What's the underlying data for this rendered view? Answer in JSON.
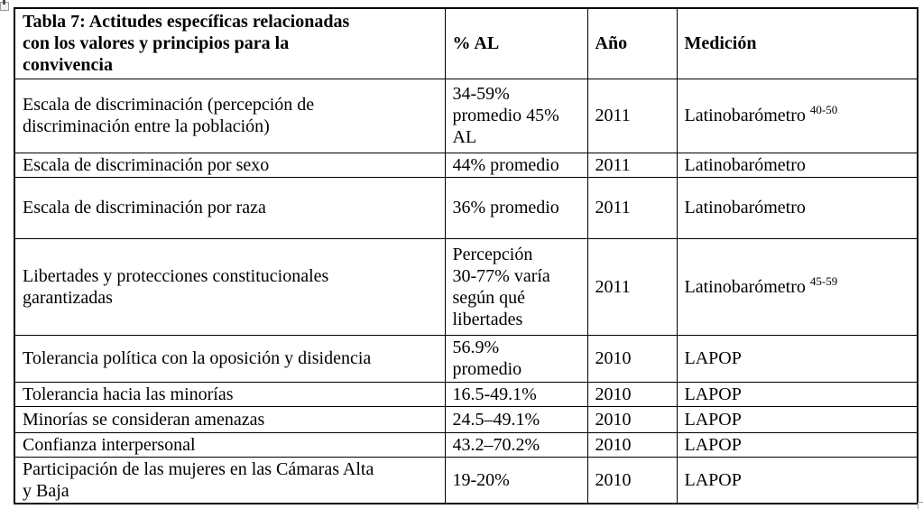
{
  "page": {
    "background": "#ffffff",
    "text_color": "#000000",
    "border_color": "#000000"
  },
  "icons": {
    "move_handle": "table-move-handle-icon",
    "resize_handle": "table-resize-handle-icon"
  },
  "table": {
    "header": {
      "title": "Tabla 7: Actitudes específicas relacionadas\ncon los valores y principios para la\nconvivencia",
      "pct": "% AL",
      "year": "Año",
      "source": "Medición"
    },
    "rows": [
      {
        "indicator": "Escala de discriminación (percepción de\ndiscriminación entre la población)",
        "pct": "34-59%\npromedio 45%\nAL",
        "year": "2011",
        "source": "Latinobarómetro",
        "source_sup": "40-50"
      },
      {
        "indicator": "Escala de discriminación por sexo",
        "pct": "44% promedio",
        "year": "2011",
        "source": "Latinobarómetro",
        "source_sup": ""
      },
      {
        "indicator": "Escala de discriminación por raza",
        "pct": "36% promedio",
        "year": "2011",
        "source": "Latinobarómetro",
        "source_sup": ""
      },
      {
        "indicator": "Libertades y protecciones constitucionales\ngarantizadas",
        "pct": "Percepción\n30-77% varía\nsegún qué\nlibertades",
        "year": "2011",
        "source": "Latinobarómetro",
        "source_sup": "45-59"
      },
      {
        "indicator": "Tolerancia política con la oposición y disidencia",
        "pct": "56.9%\npromedio",
        "year": "2010",
        "source": "LAPOP",
        "source_sup": ""
      },
      {
        "indicator": "Tolerancia hacia las minorías",
        "pct": "16.5-49.1%",
        "year": "2010",
        "source": "LAPOP",
        "source_sup": ""
      },
      {
        "indicator": "Minorías se consideran amenazas",
        "pct": "24.5–49.1%",
        "year": "2010",
        "source": "LAPOP",
        "source_sup": ""
      },
      {
        "indicator": "Confianza interpersonal",
        "pct": "43.2–70.2%",
        "year": "2010",
        "source": "LAPOP",
        "source_sup": ""
      },
      {
        "indicator": "Participación de las mujeres en las Cámaras Alta\ny Baja",
        "pct": "19-20%",
        "year": "2010",
        "source": "LAPOP",
        "source_sup": ""
      }
    ]
  }
}
